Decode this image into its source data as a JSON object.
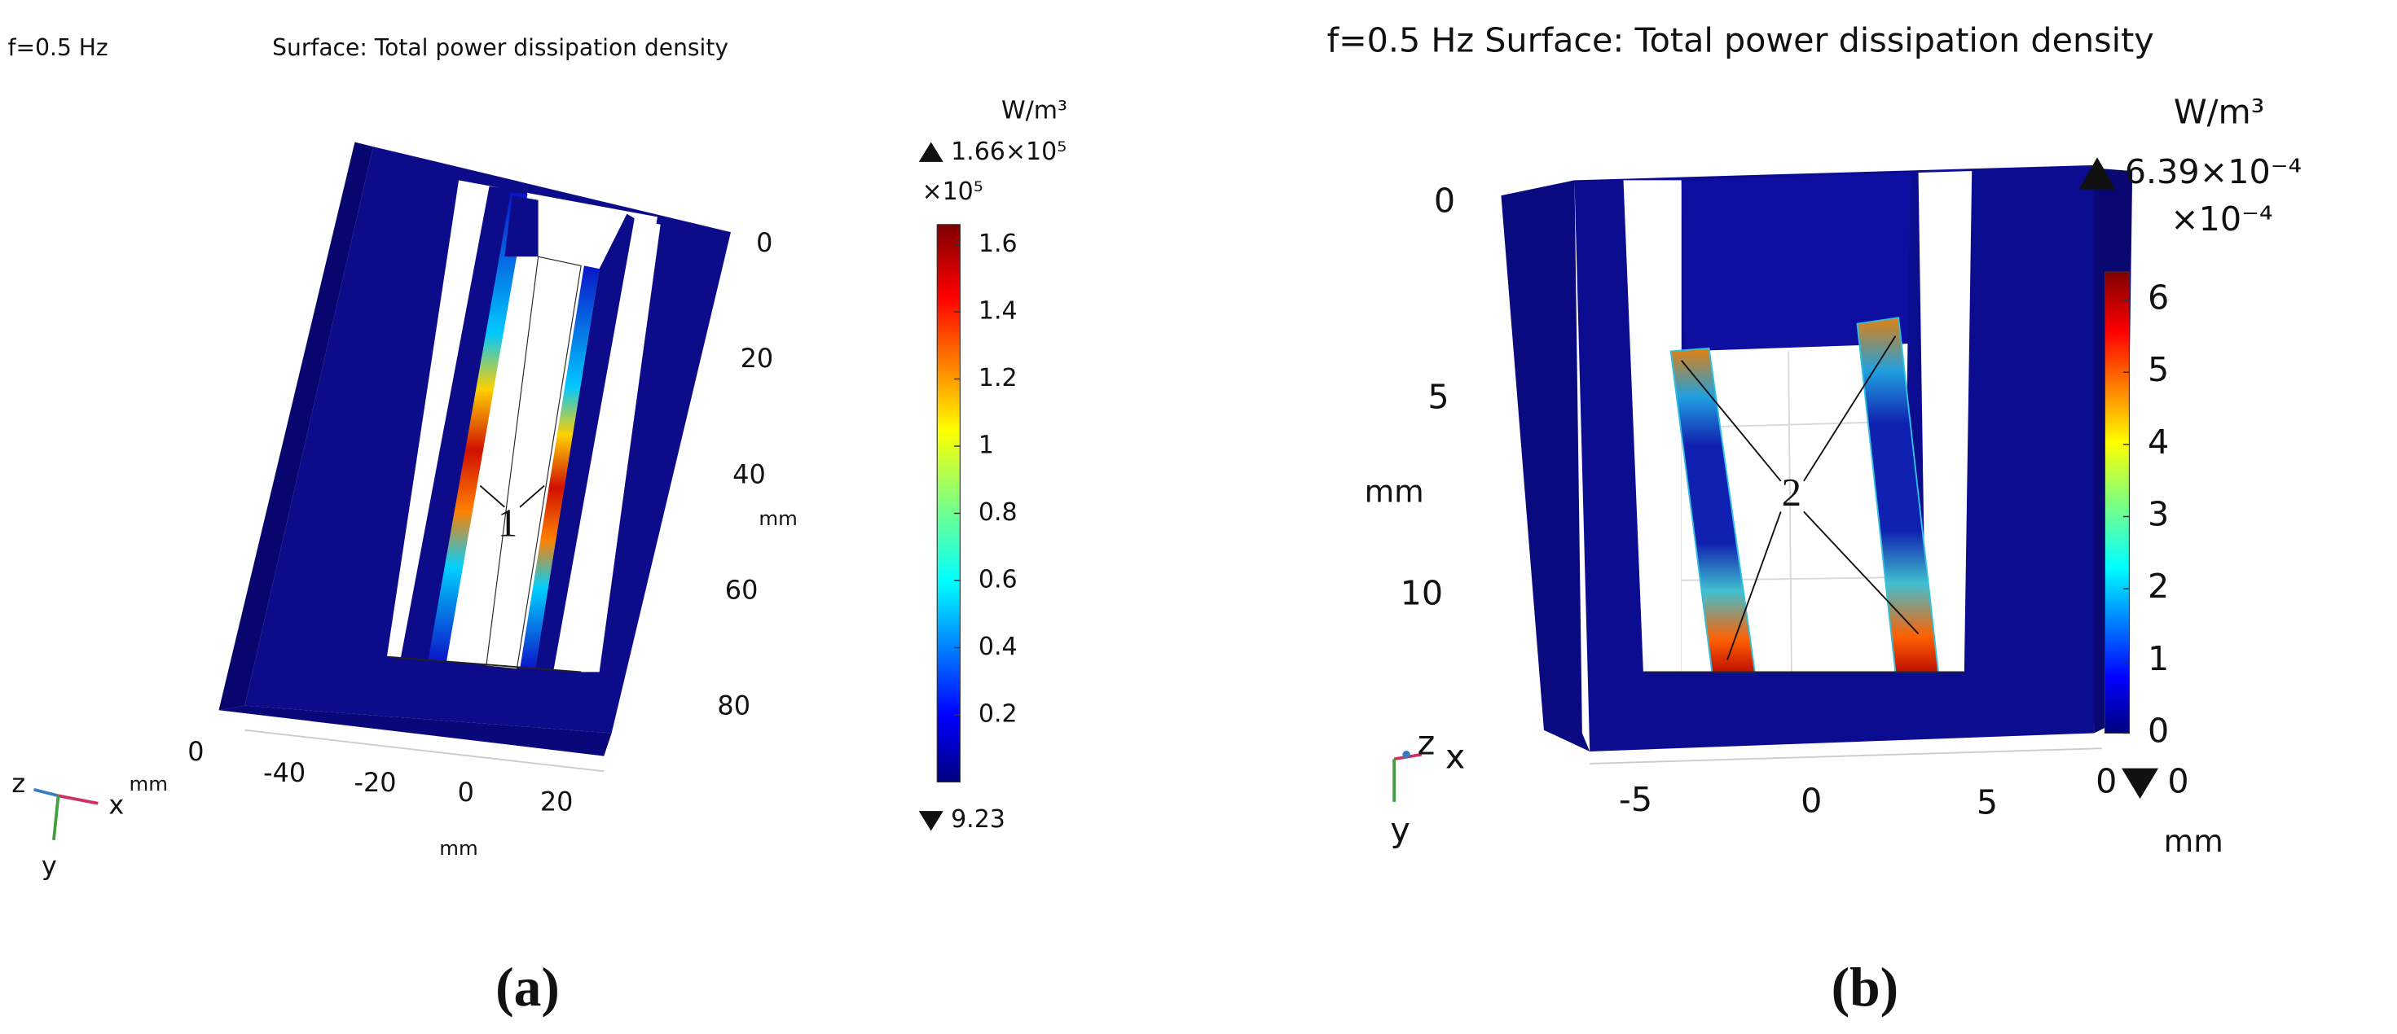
{
  "panels": [
    {
      "title_freq": "f=0.5 Hz",
      "title": "Surface: Total power dissipation density",
      "colorbar": {
        "unit": "W/m³",
        "max_label": "1.66×10⁵",
        "multiplier": "×10⁵",
        "min_label": "9.23",
        "range": [
          0,
          1.66
        ],
        "ticks": [
          0.2,
          0.4,
          0.6,
          0.8,
          1,
          1.2,
          1.4,
          1.6
        ]
      },
      "axes": [
        {
          "ticks": [
            0,
            20,
            40,
            60,
            80
          ],
          "range": [
            0,
            80
          ],
          "unit": "mm"
        },
        {
          "ticks": [
            -40,
            -20,
            0,
            20
          ],
          "range": [
            -40,
            20
          ],
          "unit": "mm"
        },
        {
          "ticks": [
            0
          ]
        }
      ],
      "triad": {
        "labels": [
          "z",
          "x",
          "y"
        ],
        "unit": "mm"
      },
      "annotation": "1",
      "caption": "(a)"
    },
    {
      "title": "f=0.5 Hz Surface: Total power dissipation density",
      "colorbar": {
        "unit": "W/m³",
        "max_label": "6.39×10⁻⁴",
        "multiplier": "×10⁻⁴",
        "min_label": "0",
        "range": [
          0,
          6.39
        ],
        "ticks": [
          0,
          1,
          2,
          3,
          4,
          5,
          6
        ]
      },
      "axes": [
        {
          "ticks": [
            0,
            5,
            10
          ],
          "range": [
            0,
            10
          ],
          "unit": "mm"
        },
        {
          "ticks": [
            -5,
            0,
            5
          ],
          "range": [
            -5,
            5
          ],
          "unit": "mm"
        },
        {
          "ticks": [
            0
          ]
        }
      ],
      "triad": {
        "labels": [
          "z",
          "x",
          "y"
        ]
      },
      "annotation": "2",
      "caption": "(b)"
    }
  ]
}
